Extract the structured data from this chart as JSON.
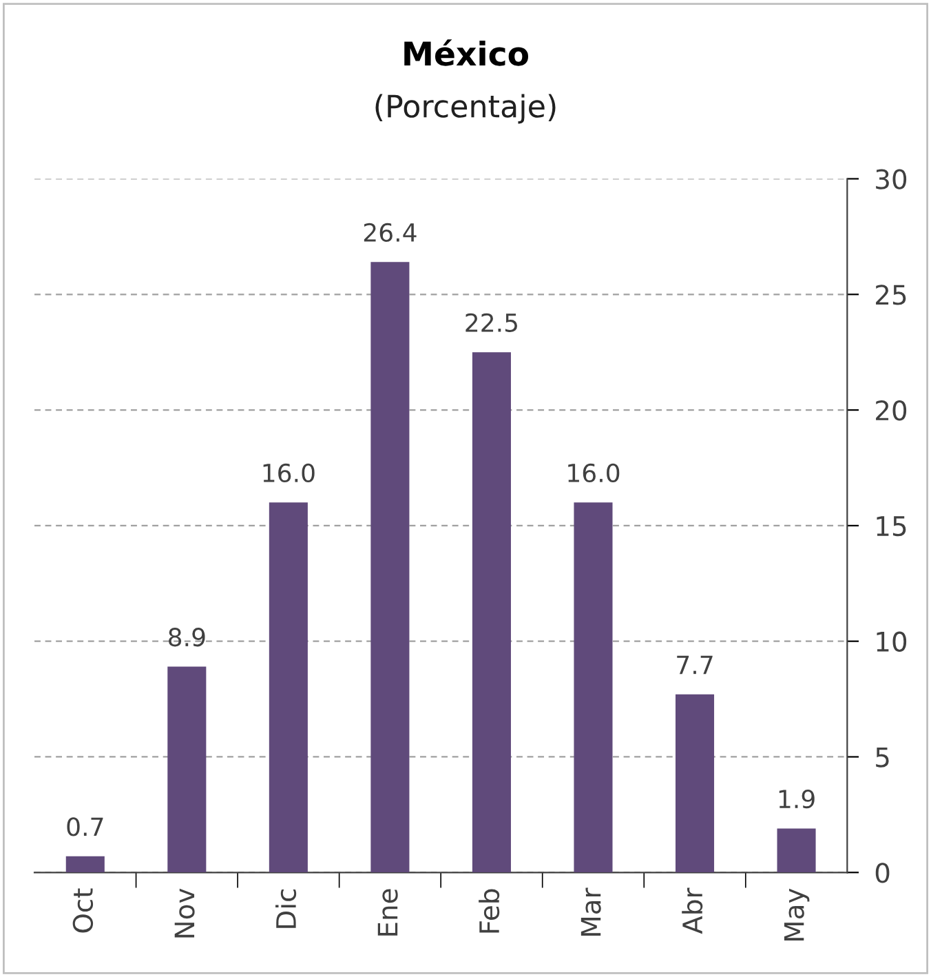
{
  "chart_data": {
    "type": "bar",
    "title": "México",
    "subtitle": "(Porcentaje)",
    "categories": [
      "Oct",
      "Nov",
      "Dic",
      "Ene",
      "Feb",
      "Mar",
      "Abr",
      "May"
    ],
    "values": [
      0.7,
      8.9,
      16.0,
      26.4,
      22.5,
      16.0,
      7.7,
      1.9
    ],
    "value_labels": [
      "0.7",
      "8.9",
      "16.0",
      "26.4",
      "22.5",
      "16.0",
      "7.7",
      "1.9"
    ],
    "color": "#604a7b",
    "ylim": [
      0,
      30
    ],
    "yticks": [
      0,
      5,
      10,
      15,
      20,
      25,
      30
    ],
    "grid": "y"
  }
}
